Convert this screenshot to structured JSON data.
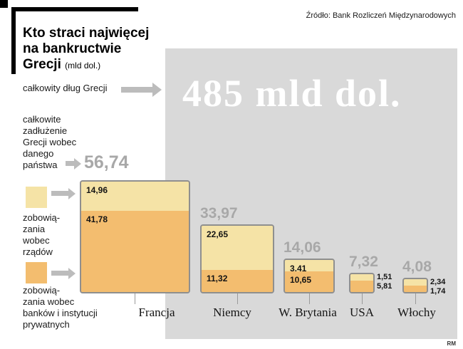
{
  "header": {
    "source": "Źródło: Bank Rozliczeń Międzynarodowych",
    "title": "Kto straci najwięcej\nna bankructwie\nGrecji",
    "title_unit": "(mld dol.)"
  },
  "annotations": {
    "total_debt_label": "całkowity dług Grecji",
    "total_debt_value": "485 mld dol.",
    "per_country_label": "całkowite\nzadłużenie\nGrecji wobec\ndanego\npaństwa",
    "legend_gov": "zobowią-\nzania\nwobec\nrządów",
    "legend_banks": "zobowią-\nzania wobec\nbanków i instytucji\nprywatnych",
    "credit": "RM"
  },
  "chart_data": {
    "type": "bar",
    "stacked": true,
    "title": "Kto straci najwięcej na bankructwie Grecji (mld dol.)",
    "unit": "mld dol.",
    "source": "Bank Rozliczeń Międzynarodowych",
    "total_greek_debt": 485,
    "total_greek_debt_label": "485 mld dol.",
    "panel_color": "#d9d9d9",
    "series": [
      {
        "key": "gov",
        "name": "zobowiązania wobec rządów",
        "color": "#f5e3a6"
      },
      {
        "key": "banks",
        "name": "zobowiązania wobec banków i instytucji prywatnych",
        "color": "#f3bd6f"
      }
    ],
    "countries": [
      {
        "name": "Francja",
        "total": 56.74,
        "total_label": "56,74",
        "gov": 14.96,
        "gov_label": "14,96",
        "banks": 41.78,
        "banks_label": "41,78"
      },
      {
        "name": "Niemcy",
        "total": 33.97,
        "total_label": "33,97",
        "gov": 22.65,
        "gov_label": "22,65",
        "banks": 11.32,
        "banks_label": "11,32"
      },
      {
        "name": "W. Brytania",
        "total": 14.06,
        "total_label": "14,06",
        "gov": 3.41,
        "gov_label": "3,41",
        "banks": 10.65,
        "banks_label": "10,65"
      },
      {
        "name": "USA",
        "total": 7.32,
        "total_label": "7,32",
        "gov": 1.51,
        "gov_label": "1,51",
        "banks": 5.81,
        "banks_label": "5,81"
      },
      {
        "name": "Włochy",
        "total": 4.08,
        "total_label": "4,08",
        "gov": 2.34,
        "gov_label": "2,34",
        "banks": 1.74,
        "banks_label": "1,74"
      }
    ]
  }
}
